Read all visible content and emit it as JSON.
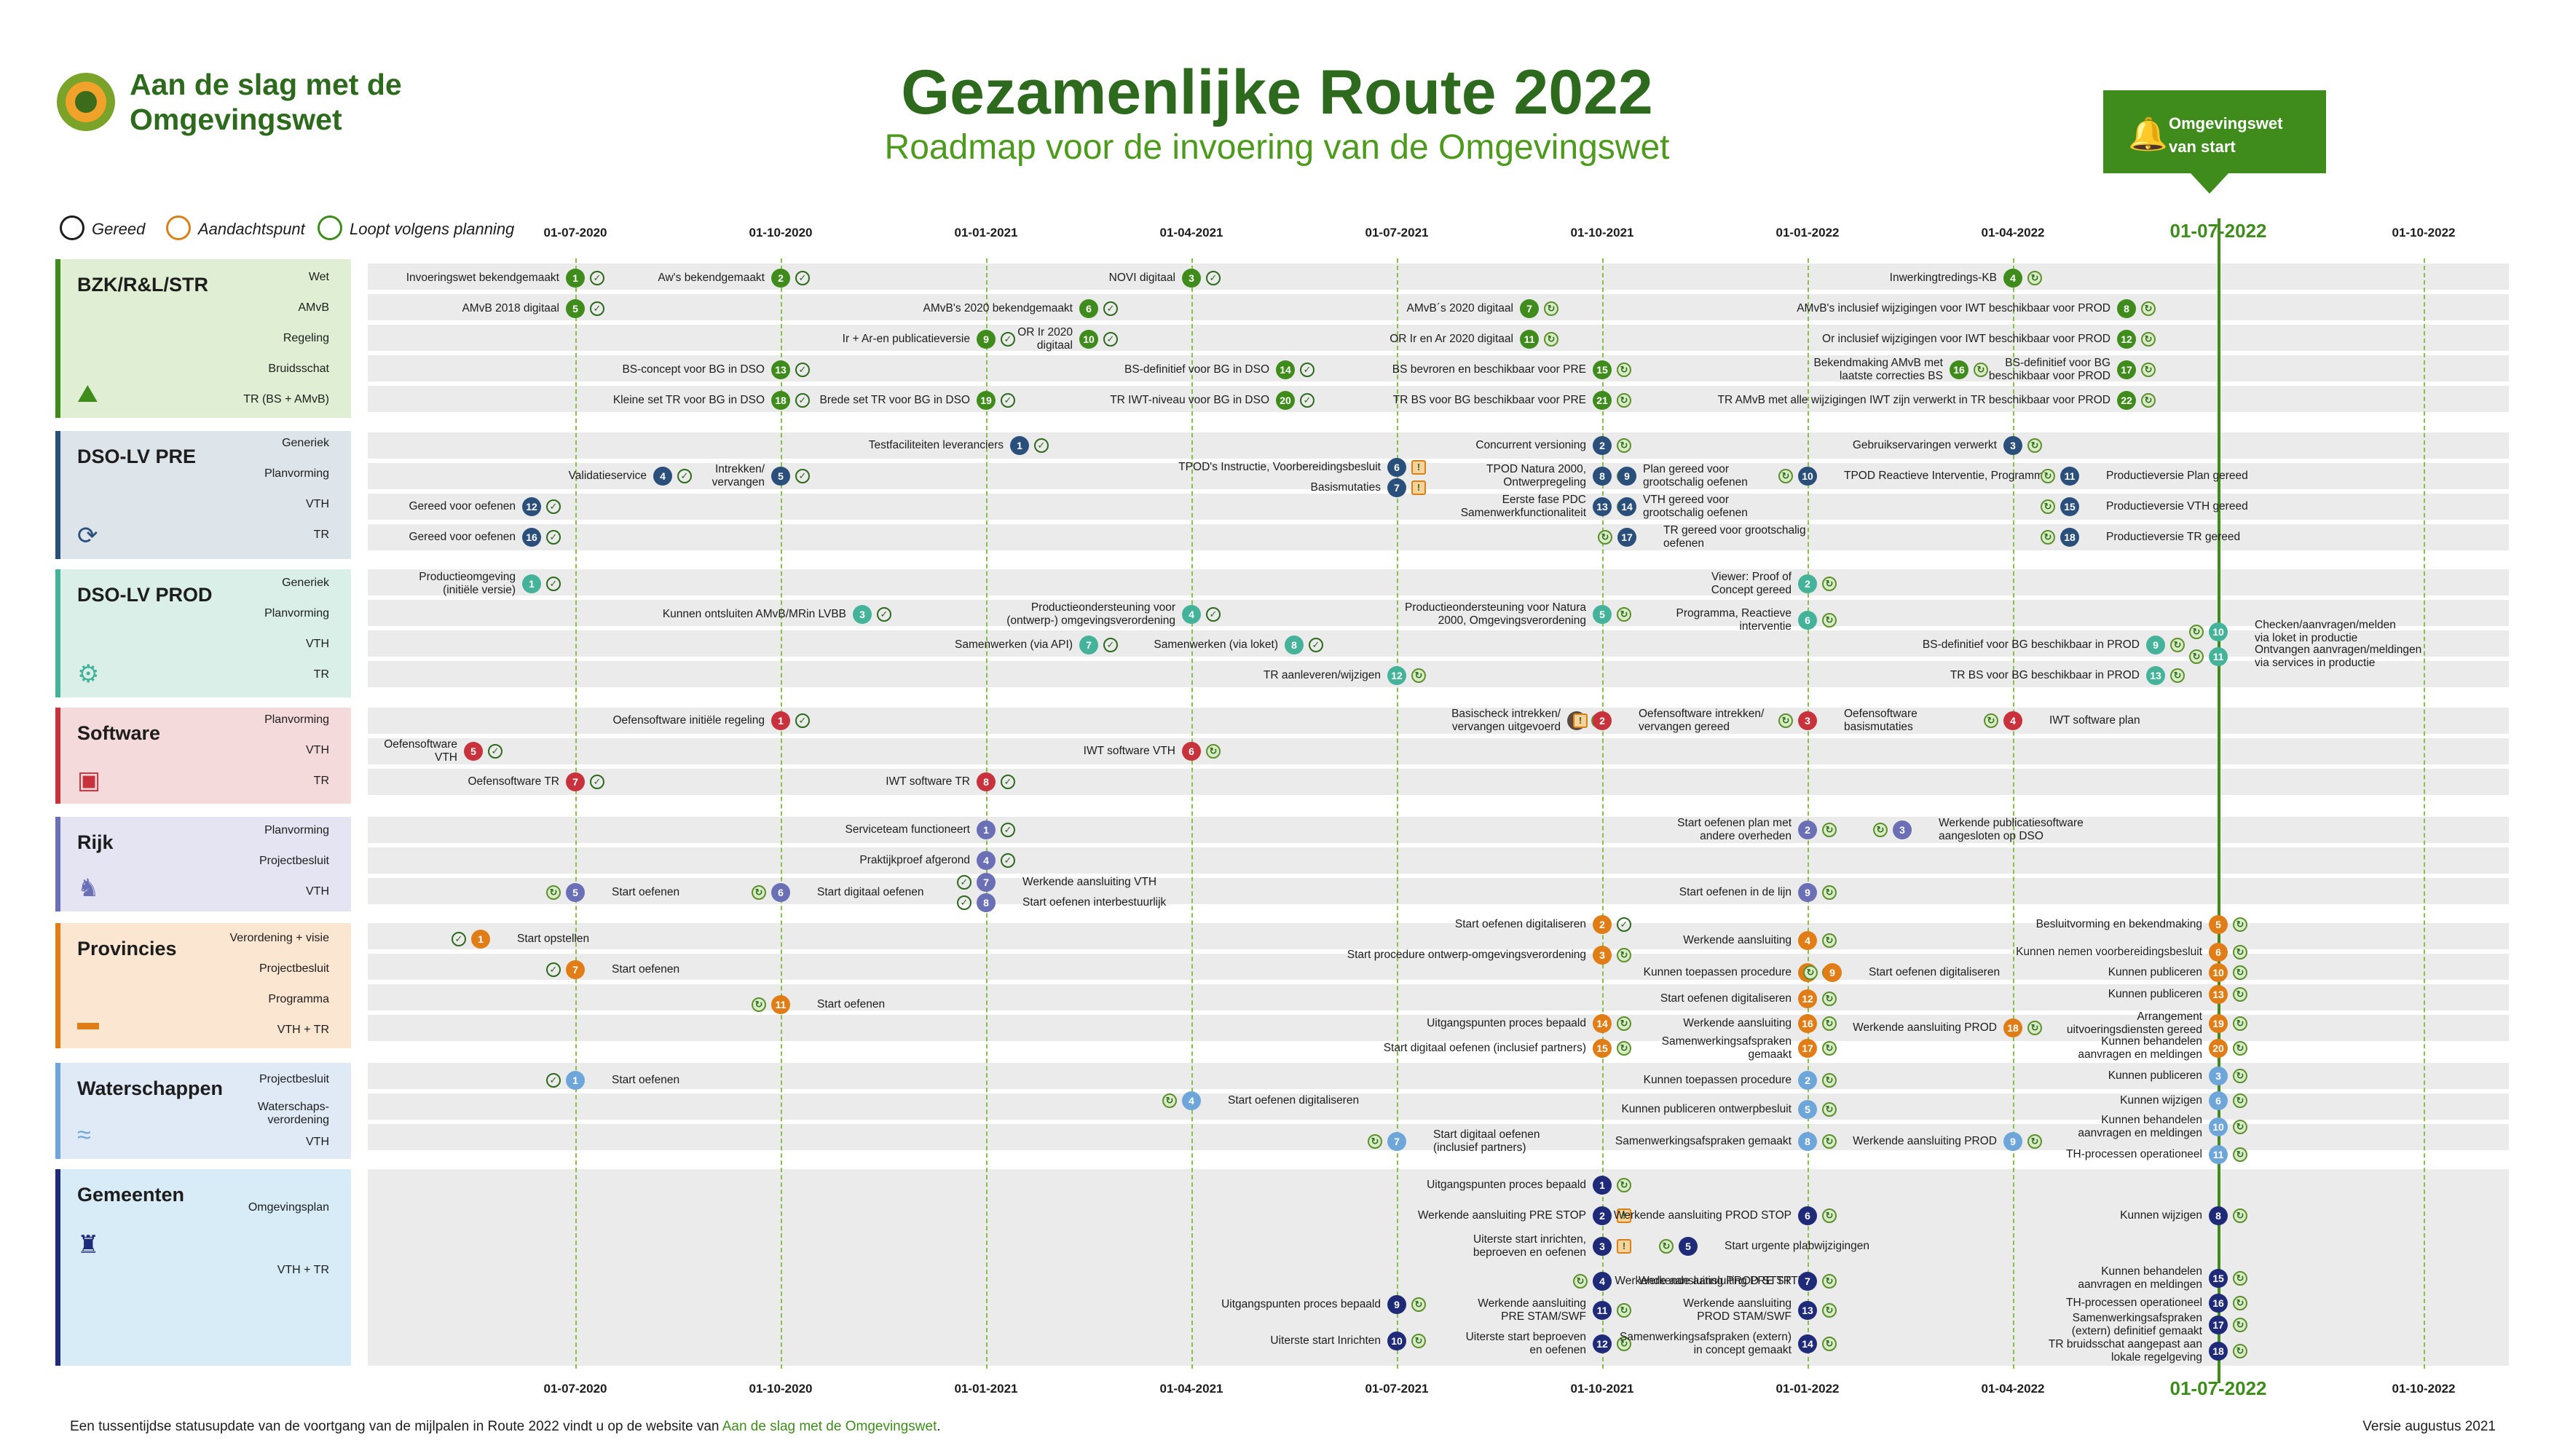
{
  "logo": {
    "line1": "Aan de slag met de",
    "line2": "Omgevingswet"
  },
  "title": "Gezamenlijke Route 2022",
  "subtitle": "Roadmap voor de invoering van de Omgevingswet",
  "launch": {
    "line1": "Omgevingswet",
    "line2": "van start"
  },
  "legend": {
    "done": "Gereed",
    "warn": "Aandachtspunt",
    "plan": "Loopt volgens planning"
  },
  "dates": [
    "01-07-2020",
    "01-10-2020",
    "01-01-2021",
    "01-04-2021",
    "01-07-2021",
    "01-10-2021",
    "01-01-2022",
    "01-04-2022",
    "01-07-2022",
    "01-10-2022"
  ],
  "colors": {
    "bzk": "#3f8c1d",
    "dso": "#2a4f7a",
    "dsoprod": "#44b39a",
    "software": "#c8323c",
    "rijk": "#6b6fb5",
    "prov": "#e07d16",
    "water": "#6fa6d9",
    "gem": "#1f2a78"
  },
  "categories": [
    {
      "name": "BZK/R&L/STR",
      "subs": [
        "Wet",
        "AMvB",
        "Regeling",
        "Bruidsschat",
        "TR (BS + AMvB)"
      ]
    },
    {
      "name": "DSO-LV PRE",
      "subs": [
        "Generiek",
        "Planvorming",
        "VTH",
        "TR"
      ]
    },
    {
      "name": "DSO-LV PROD",
      "subs": [
        "Generiek",
        "Planvorming",
        "VTH",
        "TR"
      ]
    },
    {
      "name": "Software",
      "subs": [
        "Planvorming",
        "VTH",
        "TR"
      ]
    },
    {
      "name": "Rijk",
      "subs": [
        "Planvorming",
        "Projectbesluit",
        "VTH"
      ]
    },
    {
      "name": "Provincies",
      "subs": [
        "Verordening + visie",
        "Projectbesluit",
        "Programma",
        "VTH + TR"
      ]
    },
    {
      "name": "Waterschappen",
      "subs": [
        "Projectbesluit",
        "Waterschaps-",
        "verordening",
        "VTH"
      ]
    },
    {
      "name": "Gemeenten",
      "subs": [
        "Omgevingsplan",
        "VTH + TR"
      ]
    }
  ],
  "labels": {
    "l1": "Invoeringswet bekendgemaakt",
    "l2": "Aw's bekendgemaakt",
    "l3": "NOVI digitaal",
    "l4": "Inwerkingtredings-KB",
    "l5": "AMvB 2018 digitaal",
    "l6": "AMvB's 2020 bekendgemaakt",
    "l7": "AMvB´s 2020 digitaal",
    "l8": "AMvB's inclusief wijzigingen voor IWT beschikbaar voor PROD",
    "l9": "Ir + Ar-en publicatieversie",
    "l10": "OR Ir 2020",
    "l10b": "digitaal",
    "l11": "OR Ir en Ar 2020 digitaal",
    "l12": "Or inclusief wijzigingen voor IWT beschikbaar voor PROD",
    "l13": "BS-concept voor BG in DSO",
    "l14": "BS-definitief voor BG in DSO",
    "l15": "BS bevroren en beschikbaar voor PRE",
    "l16a": "Bekendmaking AMvB met",
    "l16b": "laatste correcties BS",
    "l17a": "BS-definitief voor BG",
    "l17b": "beschikbaar voor PROD",
    "l18": "Kleine set TR voor BG in DSO",
    "l19": "Brede set TR voor BG in DSO",
    "l20": "TR IWT-niveau voor BG in DSO",
    "l21": "TR BS voor BG beschikbaar voor PRE",
    "l22": "TR AMvB met alle wijzigingen IWT zijn verwerkt in TR beschikbaar voor PROD",
    "d1": "Testfaciliteiten leveranciers",
    "d2": "Concurrent versioning",
    "d3": "Gebruikservaringen verwerkt",
    "d4": "Validatieservice",
    "d5a": "Intrekken/",
    "d5b": "vervangen",
    "d6": "TPOD's Instructie, Voorbereidingsbesluit",
    "d7": "Basismutaties",
    "d8a": "TPOD Natura 2000,",
    "d8b": "Ontwerpregeling",
    "d9a": "Plan gereed voor",
    "d9b": "grootschalig oefenen",
    "d10": "TPOD Reactieve Interventie, Programma",
    "d11": "Productieversie Plan gereed",
    "d12": "Gereed voor oefenen",
    "d13a": "Eerste fase PDC",
    "d13b": "Samenwerkfunctionaliteit",
    "d14a": "VTH gereed voor",
    "d14b": "grootschalig oefenen",
    "d15": "Productieversie VTH gereed",
    "d16": "Gereed voor oefenen",
    "d17a": "TR gereed voor grootschalig",
    "d17b": "oefenen",
    "d18": "Productieversie TR gereed",
    "p1a": "Productieomgeving",
    "p1b": "(initiële versie)",
    "p2a": "Viewer: Proof of",
    "p2b": "Concept gereed",
    "p3": "Kunnen ontsluiten AMvB/MRin LVBB",
    "p4a": "Productieondersteuning voor",
    "p4b": "(ontwerp-) omgevingsverordening",
    "p5a": "Productieondersteuning voor Natura",
    "p5b": "2000, Omgevingsverordening",
    "p6a": "Programma, Reactieve",
    "p6b": "interventie",
    "p10a": "Checken/aanvragen/melden",
    "p10b": "via loket in productie",
    "p7": "Samenwerken (via API)",
    "p8": "Samenwerken (via loket)",
    "p9": "BS-definitief voor BG beschikbaar in PROD",
    "p11a": "Ontvangen aanvragen/meldingen",
    "p11b": "via services in productie",
    "p12": "TR aanleveren/wijzigen",
    "p13": "TR BS voor BG beschikbaar in PROD",
    "s1": "Oefensoftware initiële regeling",
    "s1b": "Basischeck intrekken/",
    "s1c": "vervangen uitgevoerd",
    "s2a": "Oefensoftware intrekken/",
    "s2b": "vervangen gereed",
    "s3a": "Oefensoftware",
    "s3b": "basismutaties",
    "s4": "IWT software plan",
    "s5a": "Oefensoftware",
    "s5b": "VTH",
    "s6": "IWT software VTH",
    "s7": "Oefensoftware TR",
    "s8": "IWT software TR",
    "r1": "Serviceteam functioneert",
    "r2a": "Start oefenen plan met",
    "r2b": "andere overheden",
    "r3a": "Werkende publicatiesoftware",
    "r3b": "aangesloten op DSO",
    "r4": "Praktijkproef afgerond",
    "r5": "Start oefenen",
    "r6": "Start digitaal oefenen",
    "r7": "Werkende aansluiting VTH",
    "r8": "Start oefenen interbestuurlijk",
    "r9": "Start oefenen in de lijn",
    "v1": "Start opstellen",
    "v2": "Start oefenen digitaliseren",
    "v5": "Besluitvorming en bekendmaking",
    "v7": "Start oefenen",
    "v3": "Start procedure ontwerp-omgevingsverordening",
    "v6": "Kunnen nemen voorbereidingsbesluit",
    "v4": "Werkende aansluiting",
    "v8": "Kunnen toepassen procedure",
    "v9": "Start oefenen digitaliseren",
    "v10": "Kunnen publiceren",
    "v11": "Start oefenen",
    "v12": "Start oefenen digitaliseren",
    "v13": "Kunnen publiceren",
    "v14": "Uitgangspunten proces bepaald",
    "v16": "Werkende aansluiting",
    "v16b": "Samenwerkingsafspraken",
    "v16c": "gemaakt",
    "v18": "Werkende aansluiting PROD",
    "v19a": "Arrangement",
    "v19b": "uitvoeringsdiensten gereed",
    "v15": "Start digitaal oefenen (inclusief partners)",
    "v20a": "Kunnen behandelen",
    "v20b": "aanvragen en meldingen",
    "w1": "Start oefenen",
    "w2": "Kunnen toepassen procedure",
    "w3": "Kunnen publiceren",
    "w4": "Start oefenen digitaliseren",
    "w5": "Kunnen publiceren ontwerpbesluit",
    "w6": "Kunnen wijzigen",
    "w7a": "Start digitaal oefenen",
    "w7b": "(inclusief partners)",
    "w8": "Samenwerkingsafspraken gemaakt",
    "w9": "Werkende aansluiting PROD",
    "w10a": "Kunnen behandelen",
    "w10b": "aanvragen en meldingen",
    "w11": "TH-processen operationeel",
    "g1": "Uitgangspunten proces bepaald",
    "g2": "Werkende aansluiting PRE STOP",
    "g6": "Werkende aansluiting PROD STOP",
    "g8": "Kunnen wijzigen",
    "g3a": "Uiterste start inrichten,",
    "g3b": "beproeven en oefenen",
    "g5": "Start urgente plabwijzigingen",
    "g4": "Werkende aansluiting PRE STTR",
    "g7": "Werkende aansluiting PROD STTR",
    "g15a": "Kunnen behandelen",
    "g15b": "aanvragen en meldingen",
    "g9": "Uitgangspunten proces bepaald",
    "g11a": "Werkende aansluiting",
    "g11b": "PRE STAM/SWF",
    "g13a": "Werkende aansluiting",
    "g13b": "PROD STAM/SWF",
    "g16": "TH-processen operationeel",
    "g10": "Uiterste start Inrichten",
    "g12a": "Uiterste start beproeven",
    "g12b": "en oefenen",
    "g14a": "Samenwerkingsafspraken (extern)",
    "g14b": "in concept gemaakt",
    "g17a": "Samenwerkingsafspraken",
    "g17b": "(extern) definitief gemaakt",
    "g18a": "TR bruidsschat aangepast aan",
    "g18b": "lokale regelgeving"
  },
  "footer": {
    "text": "Een tussentijdse statusupdate van de voortgang van de mijlpalen in Route 2022 vindt u op de website van ",
    "link": "Aan de slag met de Omgevingswet",
    "end": "."
  },
  "version": "Versie augustus 2021"
}
